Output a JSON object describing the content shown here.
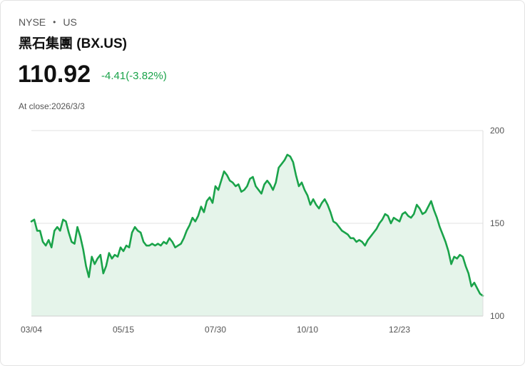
{
  "header": {
    "exchange": "NYSE",
    "separator": "•",
    "market": "US",
    "name": "黑石集團 (BX.US)",
    "price": "110.92",
    "change": "-4.41(-3.82%)",
    "close_prefix": "At close:",
    "close_date": "2026/3/3"
  },
  "colors": {
    "line": "#1aa34a",
    "fill": "#e5f4ea",
    "grid": "#e0e0e0",
    "text": "#111111",
    "muted": "#555555"
  },
  "chart_data": {
    "type": "area",
    "title": "",
    "xlabel": "",
    "ylabel": "",
    "ylim": [
      100,
      200
    ],
    "x_ticks": [
      "03/04",
      "05/15",
      "07/30",
      "10/10",
      "12/23"
    ],
    "y_ticks": [
      "200",
      "150",
      "100"
    ],
    "y_tick_values": [
      200,
      150,
      100
    ],
    "series": [
      {
        "name": "BX.US",
        "values": [
          151,
          152,
          146,
          146,
          140,
          138,
          141,
          137,
          146,
          148,
          146,
          152,
          151,
          145,
          140,
          139,
          148,
          143,
          136,
          127,
          121,
          132,
          128,
          131,
          133,
          123,
          127,
          134,
          131,
          133,
          132,
          137,
          135,
          138,
          137,
          145,
          148,
          146,
          145,
          140,
          138,
          138,
          139,
          138,
          139,
          138,
          140,
          139,
          142,
          140,
          137,
          138,
          139,
          142,
          146,
          149,
          153,
          151,
          154,
          159,
          156,
          162,
          164,
          161,
          170,
          168,
          173,
          178,
          176,
          173,
          172,
          170,
          171,
          167,
          168,
          170,
          174,
          175,
          170,
          168,
          166,
          171,
          173,
          171,
          168,
          172,
          180,
          182,
          184,
          187,
          186,
          183,
          176,
          170,
          172,
          168,
          165,
          160,
          163,
          160,
          158,
          161,
          163,
          160,
          156,
          151,
          150,
          148,
          146,
          145,
          144,
          142,
          142,
          140,
          141,
          140,
          138,
          141,
          143,
          145,
          147,
          150,
          152,
          155,
          154,
          150,
          153,
          152,
          151,
          155,
          156,
          154,
          153,
          155,
          160,
          158,
          155,
          156,
          159,
          162,
          157,
          153,
          148,
          144,
          140,
          135,
          128,
          132,
          131,
          133,
          132,
          127,
          123,
          116,
          118,
          115,
          112,
          110.92
        ]
      }
    ]
  }
}
